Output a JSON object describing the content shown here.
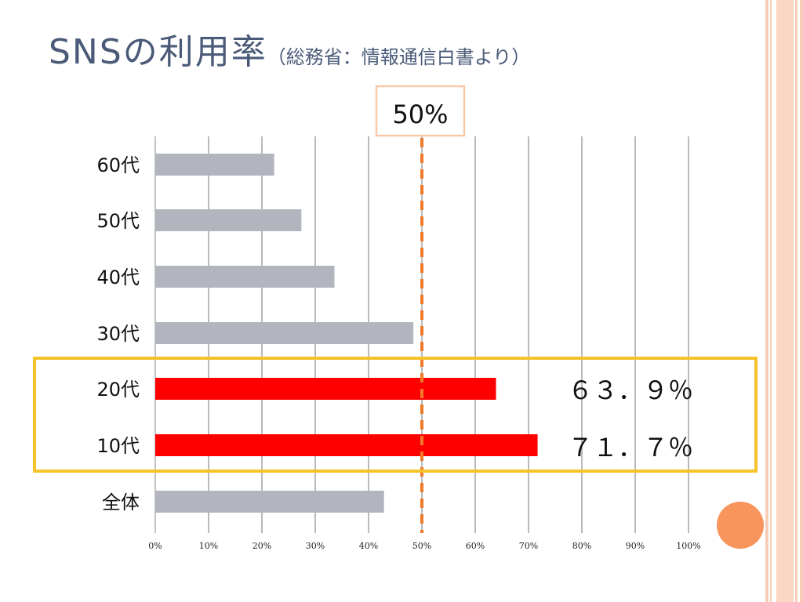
{
  "slide": {
    "title_main": "SNSの利用率",
    "title_sub": "（総務省：情報通信白書より）",
    "reference_label": "50%",
    "callouts": [
      "６３．９％",
      "７１．７％"
    ]
  },
  "colors": {
    "title": "#4a5a78",
    "bar_gray": "#b2b5be",
    "bar_red": "#ff0000",
    "reference_line": "#f07a2a",
    "highlight_box": "#f6c22a",
    "label_box_border": "#f7c9a9",
    "accent_circle": "#f8955d",
    "stripe": "#f9cdb5"
  },
  "chart_data": {
    "type": "bar",
    "orientation": "horizontal",
    "categories": [
      "60代",
      "50代",
      "40代",
      "30代",
      "20代",
      "10代",
      "全体"
    ],
    "values": [
      22.3,
      27.4,
      33.6,
      48.4,
      63.9,
      71.7,
      42.9
    ],
    "highlighted": [
      "20代",
      "10代"
    ],
    "xlim": [
      0,
      100
    ],
    "x_ticks": [
      "0%",
      "10%",
      "20%",
      "30%",
      "40%",
      "50%",
      "60%",
      "70%",
      "80%",
      "90%",
      "100%"
    ],
    "reference_line": 50,
    "grid": true,
    "title": "",
    "xlabel": "",
    "ylabel": ""
  }
}
